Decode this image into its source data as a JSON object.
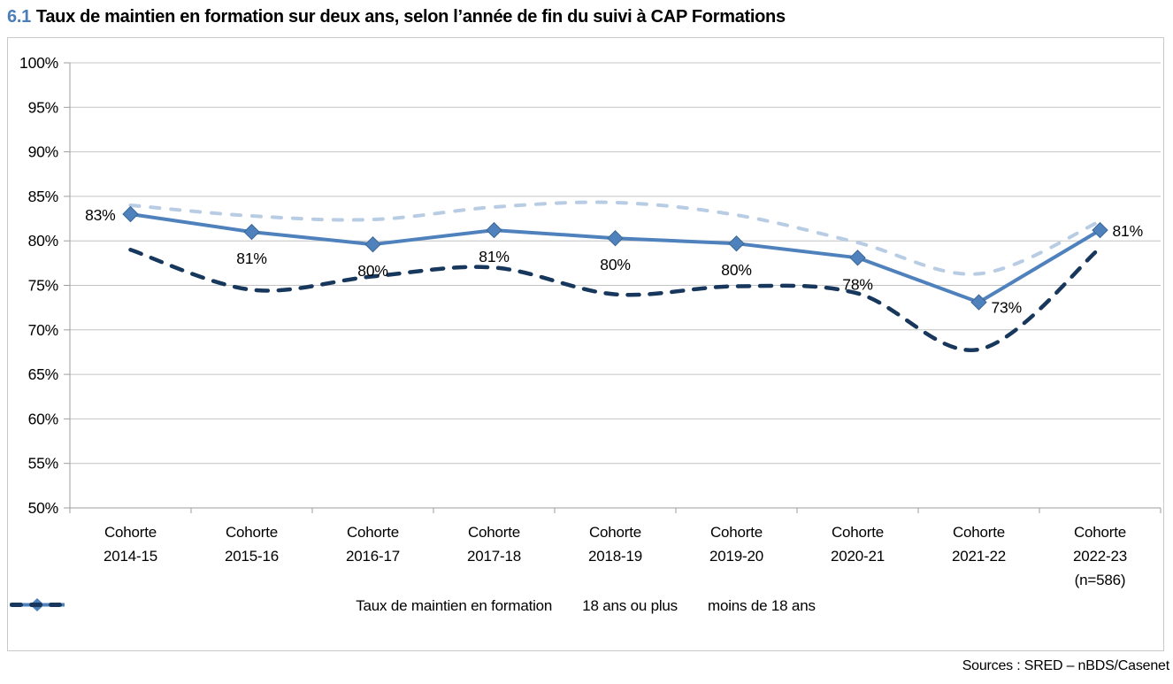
{
  "page": {
    "title_number": "6.1",
    "title_text": "Taux de maintien en formation sur deux ans, selon l’année de fin du suivi à CAP Formations",
    "source": "Sources : SRED – nBDS/Casenet"
  },
  "colors": {
    "accent_title": "#4A7EBB",
    "main_series": "#4F81BD",
    "main_series_edge": "#3A6794",
    "light_series": "#B8CCE4",
    "dark_series": "#17375D",
    "gridline": "#C4C4C4",
    "axis": "#9E9E9E"
  },
  "chart_data": {
    "type": "line",
    "title": "Taux de maintien en formation sur deux ans, selon l’année de fin du suivi à CAP Formations",
    "xlabel": "",
    "ylabel": "",
    "y_axis": {
      "min": 50,
      "max": 100,
      "step": 5,
      "tick_format": "percent",
      "tick_labels": [
        "50%",
        "55%",
        "60%",
        "65%",
        "70%",
        "75%",
        "80%",
        "85%",
        "90%",
        "95%",
        "100%"
      ]
    },
    "grid": true,
    "legend_position": "bottom",
    "categories": [
      [
        "Cohorte",
        "2014-15"
      ],
      [
        "Cohorte",
        "2015-16"
      ],
      [
        "Cohorte",
        "2016-17"
      ],
      [
        "Cohorte",
        "2017-18"
      ],
      [
        "Cohorte",
        "2018-19"
      ],
      [
        "Cohorte",
        "2019-20"
      ],
      [
        "Cohorte",
        "2020-21"
      ],
      [
        "Cohorte",
        "2021-22"
      ],
      [
        "Cohorte",
        "2022-23",
        "(n=586)"
      ]
    ],
    "series": [
      {
        "name": "Taux de maintien en formation",
        "style": "solid",
        "marker": "diamond",
        "smooth": false,
        "color": "#4F81BD",
        "values": [
          83,
          81,
          79.6,
          81.2,
          80.3,
          79.7,
          78.1,
          73.1,
          81.2
        ],
        "labels": [
          "83%",
          "81%",
          "80%",
          "81%",
          "80%",
          "80%",
          "78%",
          "73%",
          "81%"
        ],
        "label_positions": [
          "left",
          "below",
          "below",
          "below",
          "below",
          "below",
          "below",
          "right-below",
          "right"
        ]
      },
      {
        "name": "18 ans ou plus",
        "style": "dashed",
        "marker": "none",
        "smooth": true,
        "color": "#B8CCE4",
        "values": [
          84,
          82.8,
          82.4,
          83.8,
          84.3,
          82.9,
          79.8,
          76.3,
          82.2
        ],
        "labels": []
      },
      {
        "name": "moins de 18 ans",
        "style": "dashed",
        "marker": "none",
        "smooth": true,
        "color": "#17375D",
        "values": [
          79,
          74.5,
          76,
          77,
          74,
          74.9,
          74.1,
          67.8,
          79.2
        ],
        "labels": []
      }
    ]
  }
}
